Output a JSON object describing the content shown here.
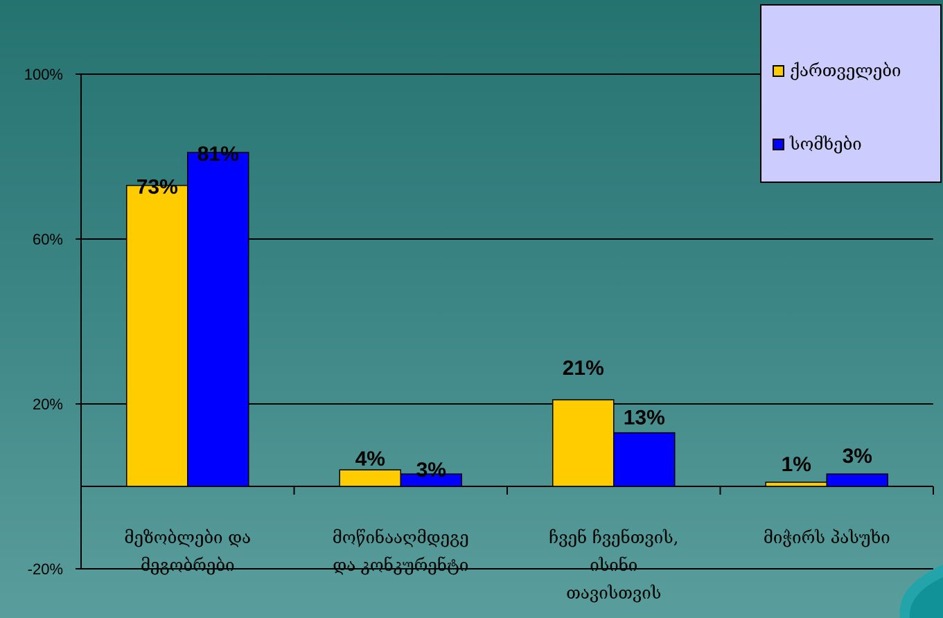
{
  "chart_data": {
    "type": "bar",
    "categories": [
      [
        "მეზობლები და",
        "მეგობრები"
      ],
      [
        "მოწინააღმდეგე",
        "და კონკურენტი"
      ],
      [
        "ჩვენ ჩვენთვის,",
        "ისინი",
        "თავისთვის"
      ],
      [
        "მიჭირს პასუხი"
      ]
    ],
    "series": [
      {
        "name": "ქართველები",
        "color": "#ffcc00",
        "values": [
          73,
          4,
          21,
          1
        ],
        "labels": [
          "73%",
          "4%",
          "21%",
          "1%"
        ]
      },
      {
        "name": "სომხები",
        "color": "#0000ff",
        "values": [
          81,
          3,
          13,
          3
        ],
        "labels": [
          "81%",
          "3%",
          "13%",
          "3%"
        ]
      }
    ],
    "yticks": [
      {
        "value": 100,
        "label": "100%"
      },
      {
        "value": 60,
        "label": "60%"
      },
      {
        "value": 20,
        "label": "20%"
      },
      {
        "value": -20,
        "label": "-20%"
      }
    ],
    "ylim": [
      -20,
      100
    ],
    "gridlines": [
      100,
      60,
      20,
      -20
    ],
    "legend_position": "top-right"
  }
}
